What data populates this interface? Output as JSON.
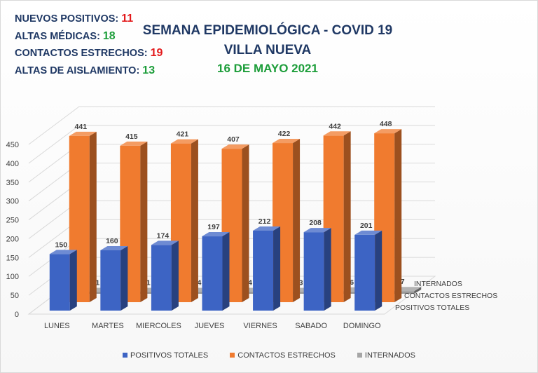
{
  "stats": [
    {
      "label": "NUEVOS POSITIVOS:",
      "value": "11",
      "color": "#e31a1c"
    },
    {
      "label": "ALTAS MÉDICAS:",
      "value": "18",
      "color": "#1e9e3b"
    },
    {
      "label": "CONTACTOS ESTRECHOS:",
      "value": "19",
      "color": "#e31a1c"
    },
    {
      "label": "ALTAS DE AISLAMIENTO:",
      "value": "13",
      "color": "#1e9e3b"
    }
  ],
  "header": {
    "title_line1": "SEMANA EPIDEMIOLÓGICA - COVID 19",
    "title_line2": "VILLA NUEVA",
    "date": "16 DE MAYO 2021"
  },
  "chart_data": {
    "type": "bar",
    "style": "3d-clustered-depth",
    "categories": [
      "LUNES",
      "MARTES",
      "MIERCOLES",
      "JUEVES",
      "VIERNES",
      "SABADO",
      "DOMINGO"
    ],
    "series": [
      {
        "name": "POSITIVOS TOTALES",
        "values": [
          150,
          160,
          174,
          197,
          212,
          208,
          201
        ],
        "color": "#3d64c4"
      },
      {
        "name": "CONTACTOS ESTRECHOS",
        "values": [
          441,
          415,
          421,
          407,
          422,
          442,
          448
        ],
        "color": "#f07b2f"
      },
      {
        "name": "INTERNADOS",
        "values": [
          1,
          1,
          4,
          4,
          3,
          6,
          7
        ],
        "color": "#999999"
      }
    ],
    "ylim": [
      0,
      450
    ],
    "yticks": [
      0,
      50,
      100,
      150,
      200,
      250,
      300,
      350,
      400,
      450
    ],
    "grid": true,
    "legend_position": "bottom"
  }
}
